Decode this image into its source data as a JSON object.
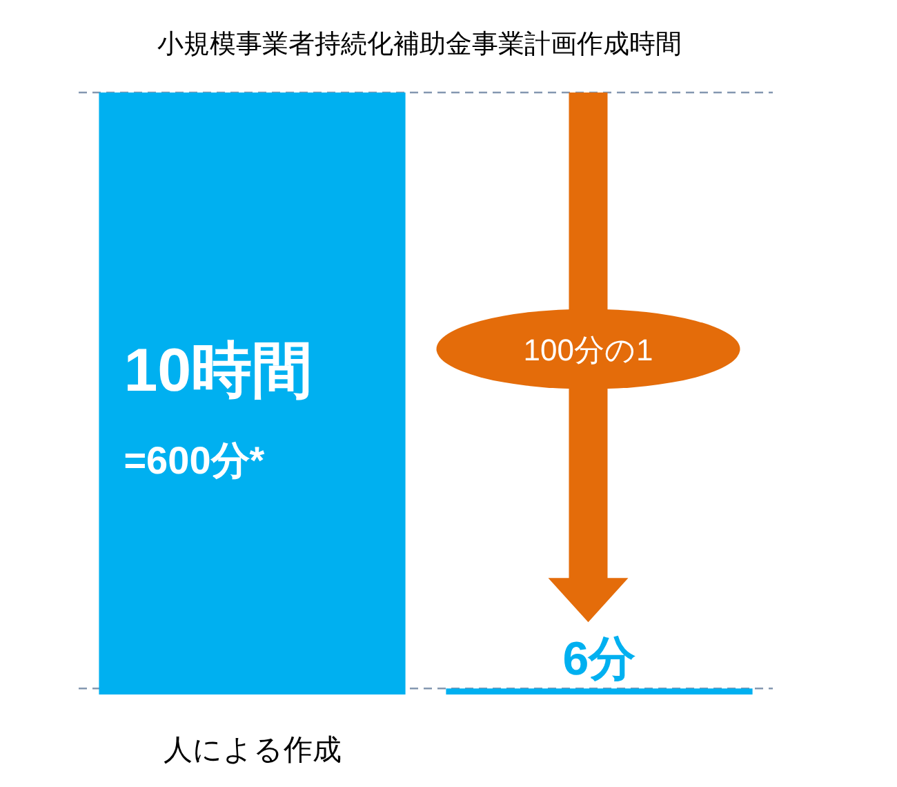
{
  "chart_data": {
    "type": "bar",
    "title": "小規模事業者持続化補助金事業計画作成時間",
    "categories": [
      "人による作成",
      null
    ],
    "values": [
      600,
      6
    ],
    "color": "#00b0f0",
    "value_labels": [
      "10時間\n=600分*",
      "6分"
    ],
    "ref_lines": [
      {
        "axis": "y",
        "value": 600,
        "color": "#8497b0",
        "line_style": "dashed"
      },
      {
        "axis": "y",
        "value": 6,
        "color": "#8497b0",
        "line_style": "dashed"
      }
    ],
    "annotations": [
      "100分の1"
    ]
  }
}
